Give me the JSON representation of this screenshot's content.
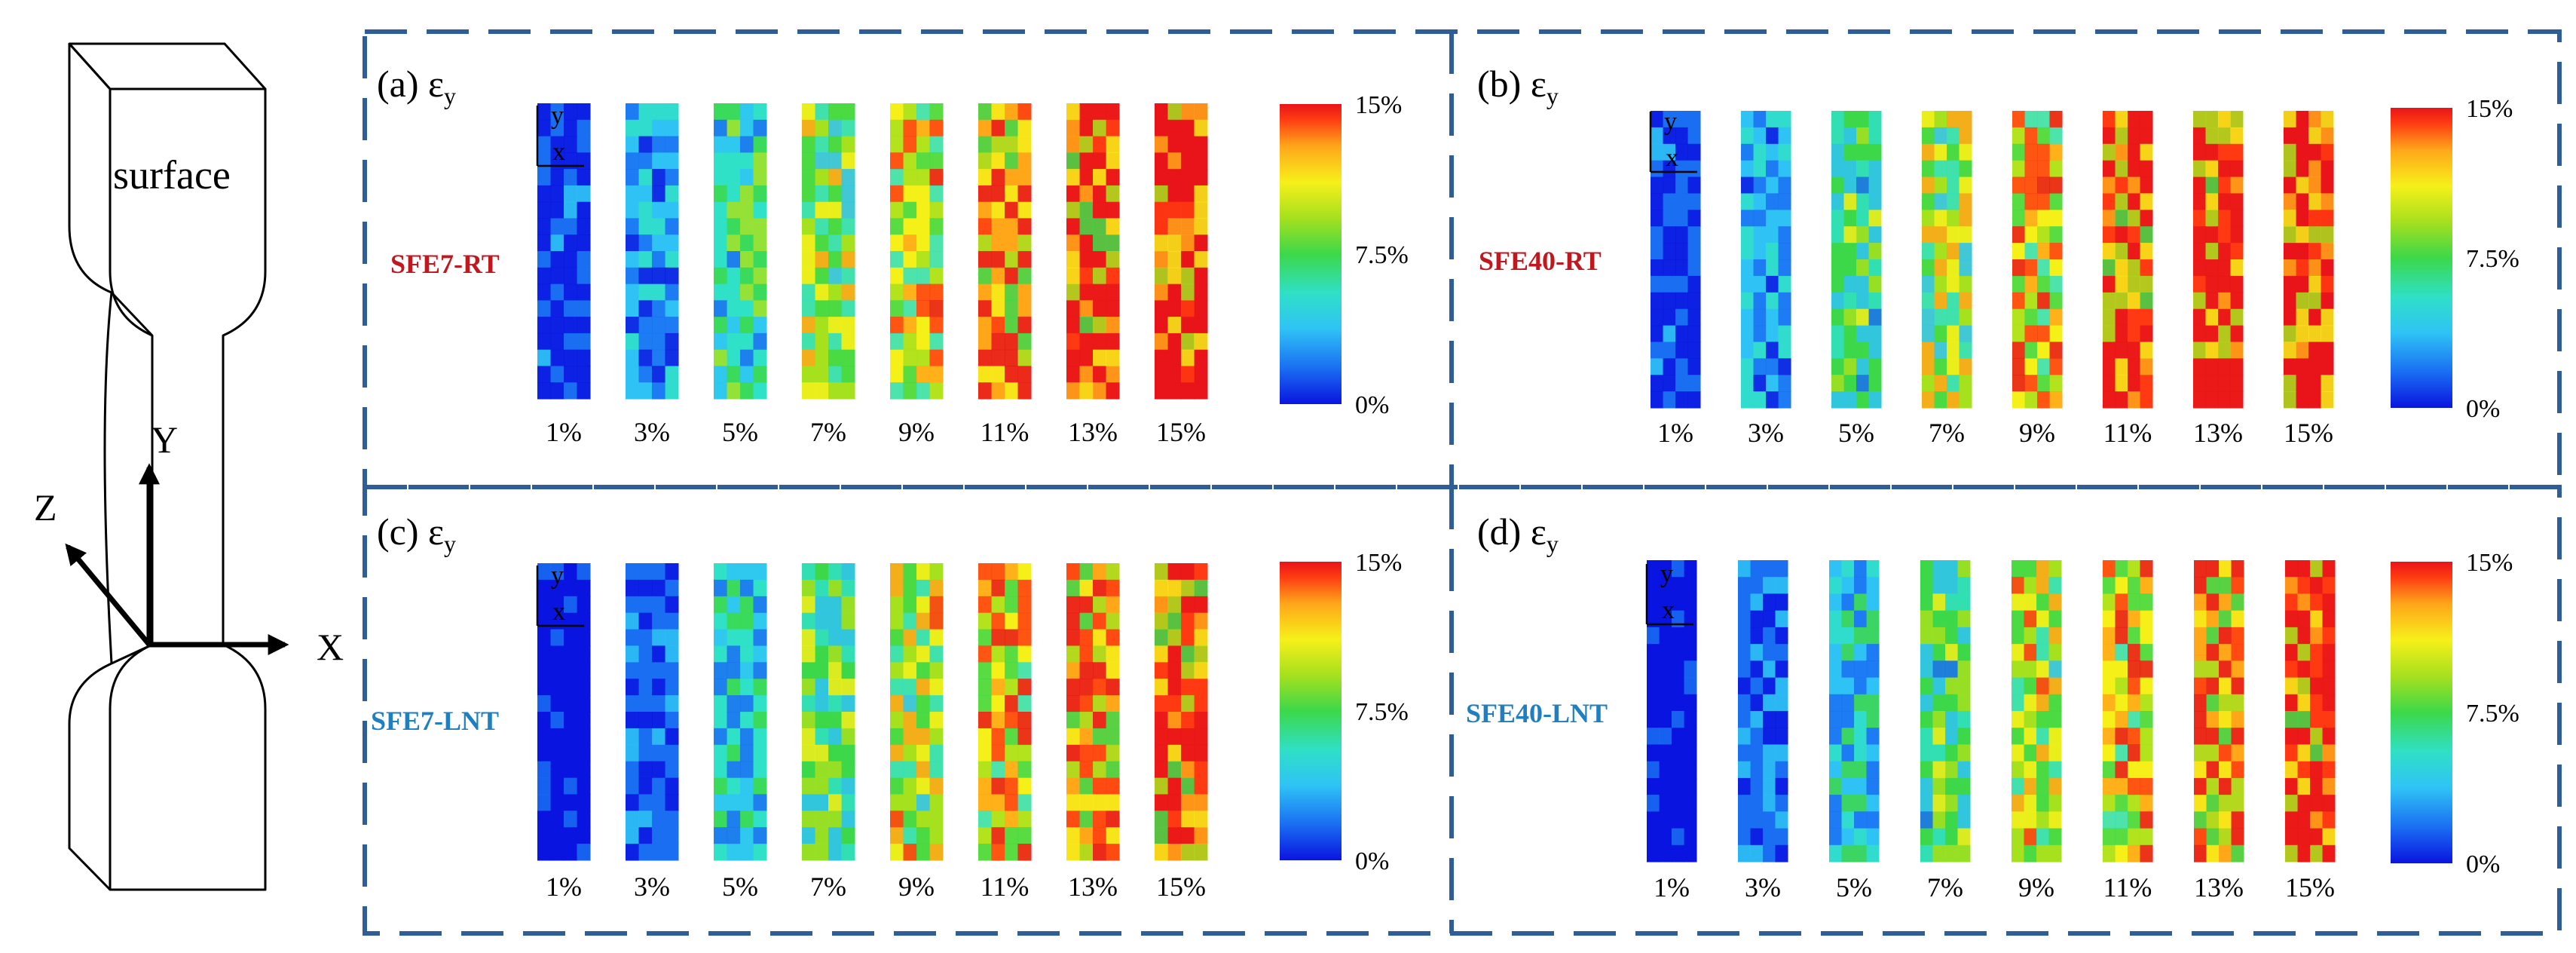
{
  "specimen": {
    "surface_label": "surface",
    "axis_x": "X",
    "axis_y": "Y",
    "axis_z": "Z"
  },
  "panels": [
    {
      "letter": "(a)",
      "symbol": "ε",
      "subscript": "y",
      "sample": "SFE7-RT",
      "sample_color": "#c0181f",
      "coord_y": "y",
      "coord_x": "x",
      "strain_levels": [
        "1%",
        "3%",
        "5%",
        "7%",
        "9%",
        "11%",
        "13%",
        "15%"
      ],
      "mean_strain_fraction": [
        0.1,
        0.22,
        0.38,
        0.5,
        0.62,
        0.78,
        0.86,
        0.92
      ],
      "colorbar": {
        "max": "15%",
        "mid": "7.5%",
        "min": "0%"
      }
    },
    {
      "letter": "(b)",
      "symbol": "ε",
      "subscript": "y",
      "sample": "SFE40-RT",
      "sample_color": "#c0181f",
      "coord_y": "y",
      "coord_x": "x",
      "strain_levels": [
        "1%",
        "3%",
        "5%",
        "7%",
        "9%",
        "11%",
        "13%",
        "15%"
      ],
      "mean_strain_fraction": [
        0.1,
        0.22,
        0.4,
        0.52,
        0.66,
        0.8,
        0.88,
        0.94
      ],
      "colorbar": {
        "max": "15%",
        "mid": "7.5%",
        "min": "0%"
      }
    },
    {
      "letter": "(c)",
      "symbol": "ε",
      "subscript": "y",
      "sample": "SFE7-LNT",
      "sample_color": "#1f7fc0",
      "coord_y": "y",
      "coord_x": "x",
      "strain_levels": [
        "1%",
        "3%",
        "5%",
        "7%",
        "9%",
        "11%",
        "13%",
        "15%"
      ],
      "mean_strain_fraction": [
        0.04,
        0.14,
        0.3,
        0.44,
        0.56,
        0.66,
        0.74,
        0.82
      ],
      "colorbar": {
        "max": "15%",
        "mid": "7.5%",
        "min": "0%"
      }
    },
    {
      "letter": "(d)",
      "symbol": "ε",
      "subscript": "y",
      "sample": "SFE40-LNT",
      "sample_color": "#1f7fc0",
      "coord_y": "y",
      "coord_x": "x",
      "strain_levels": [
        "1%",
        "3%",
        "5%",
        "7%",
        "9%",
        "11%",
        "13%",
        "15%"
      ],
      "mean_strain_fraction": [
        0.04,
        0.14,
        0.28,
        0.42,
        0.56,
        0.66,
        0.74,
        0.82
      ],
      "colorbar": {
        "max": "15%",
        "mid": "7.5%",
        "min": "0%"
      }
    }
  ],
  "colormap": [
    "#0a14e0",
    "#1a6ef2",
    "#2fc3f5",
    "#2fe0c6",
    "#3cd84a",
    "#a6e01e",
    "#f6f01a",
    "#ffa61a",
    "#ff3a12",
    "#e8141a"
  ]
}
